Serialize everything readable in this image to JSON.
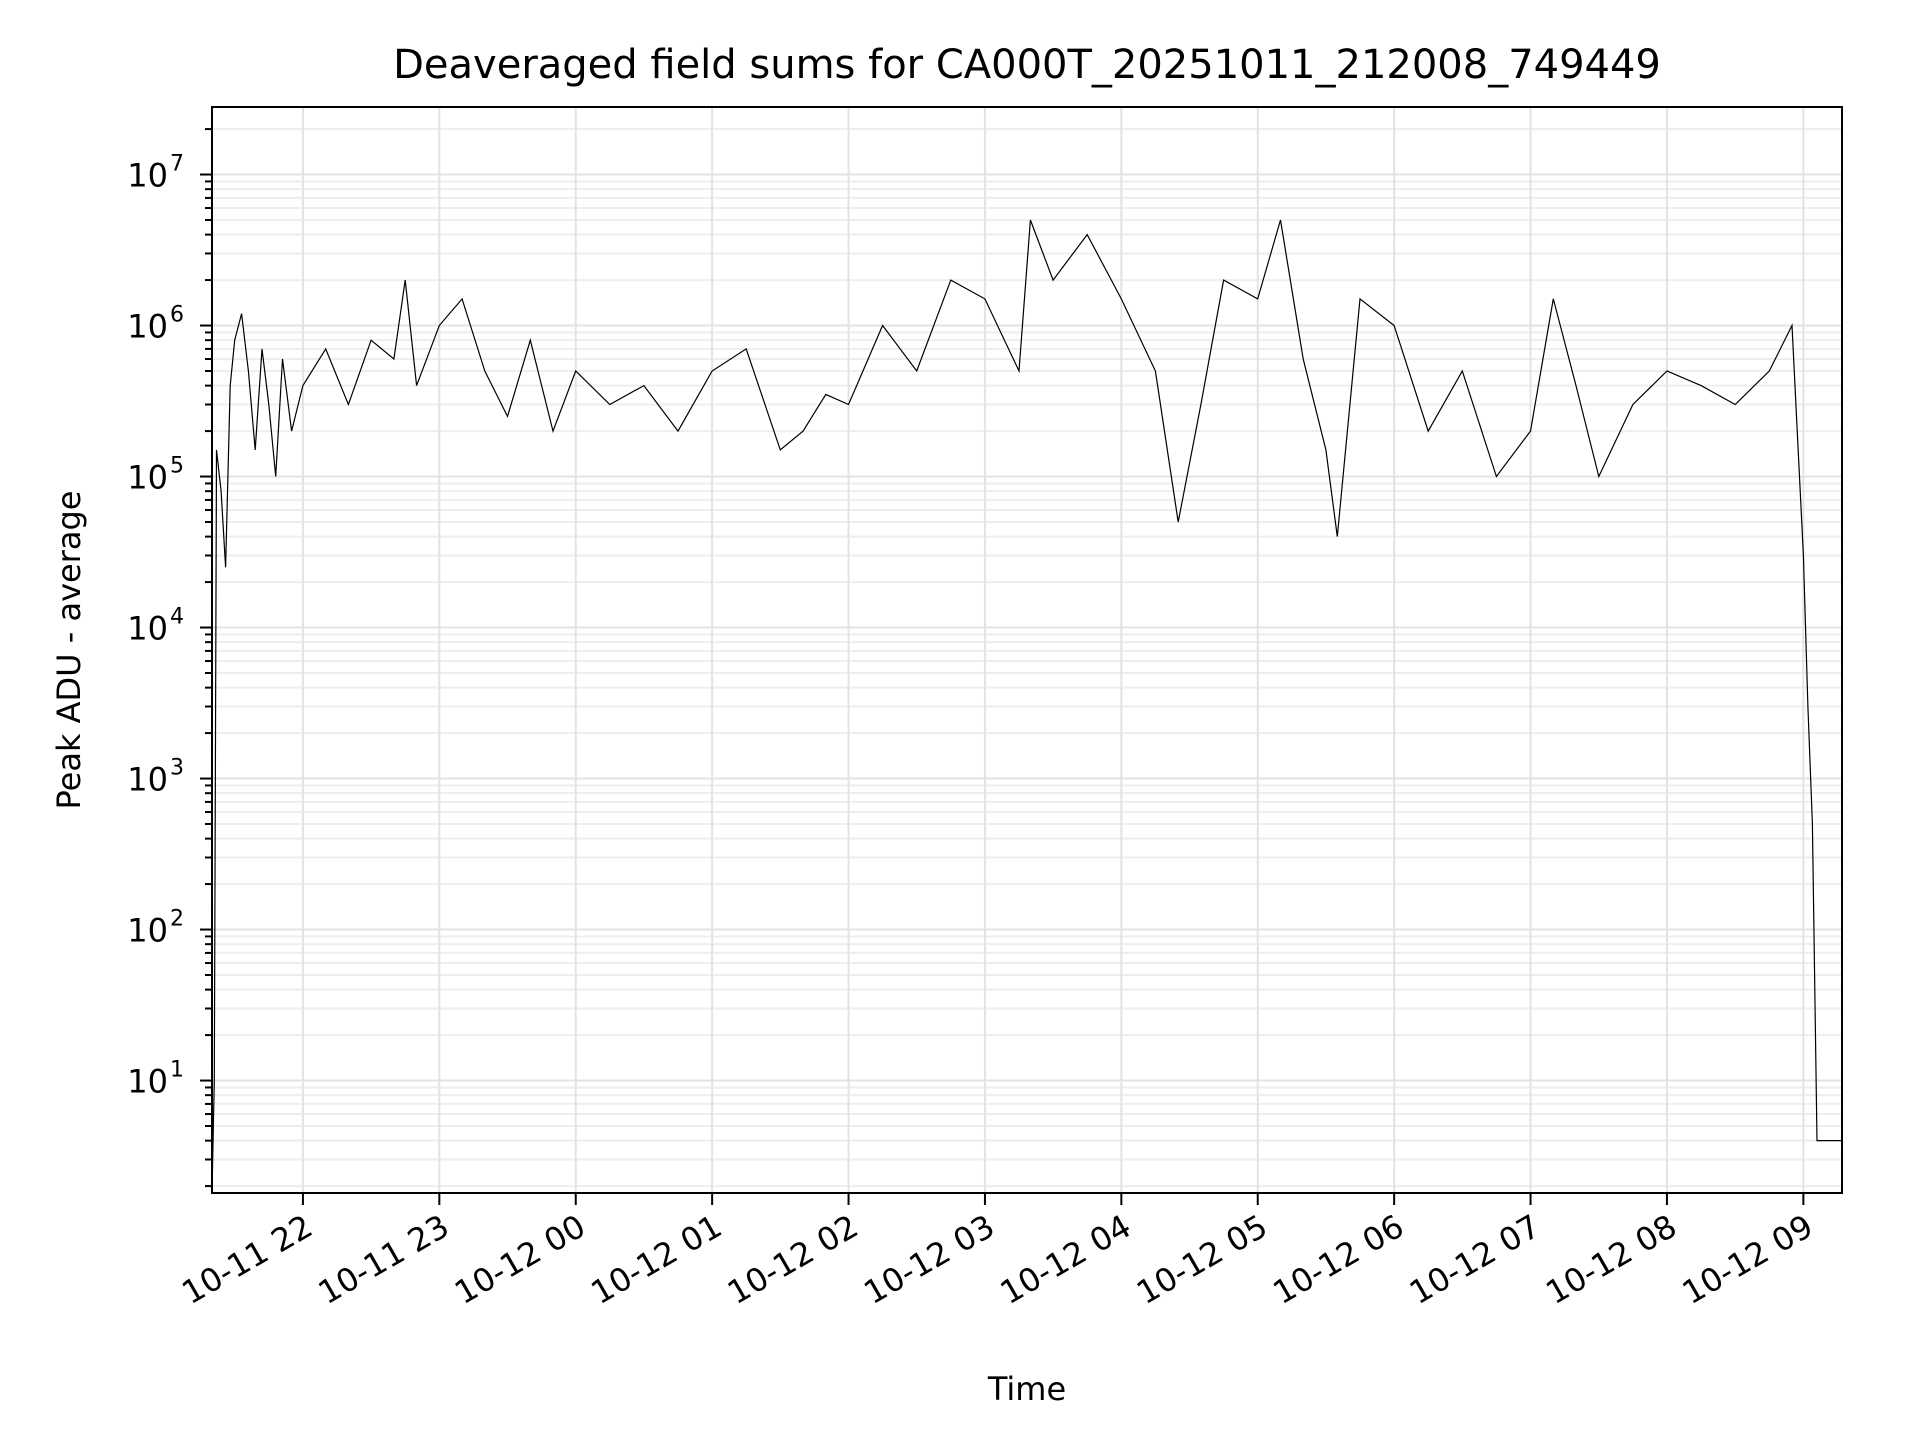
{
  "chart_data": {
    "type": "line",
    "title": "Deaveraged field sums for CA000T_20251011_212008_749449",
    "xlabel": "Time",
    "ylabel": "Peak ADU - average",
    "y_scale": "log",
    "y_tick_labels": [
      {
        "base": "10",
        "exp": "1",
        "value": 10
      },
      {
        "base": "10",
        "exp": "2",
        "value": 100
      },
      {
        "base": "10",
        "exp": "3",
        "value": 1000
      },
      {
        "base": "10",
        "exp": "4",
        "value": 10000
      },
      {
        "base": "10",
        "exp": "5",
        "value": 100000
      },
      {
        "base": "10",
        "exp": "6",
        "value": 1000000
      },
      {
        "base": "10",
        "exp": "7",
        "value": 10000000
      }
    ],
    "x_tick_labels": [
      "10-11 22",
      "10-11 23",
      "10-12 00",
      "10-12 01",
      "10-12 02",
      "10-12 03",
      "10-12 04",
      "10-12 05",
      "10-12 06",
      "10-12 07",
      "10-12 08",
      "10-12 09"
    ],
    "x_ticks": [
      "2025-10-11 22:00",
      "2025-10-11 23:00",
      "2025-10-12 00:00",
      "2025-10-12 01:00",
      "2025-10-12 02:00",
      "2025-10-12 03:00",
      "2025-10-12 04:00",
      "2025-10-12 05:00",
      "2025-10-12 06:00",
      "2025-10-12 07:00",
      "2025-10-12 08:00",
      "2025-10-12 09:00"
    ],
    "xlim": [
      "2025-10-11 21:20",
      "2025-10-12 09:17"
    ],
    "ylim": [
      1.8,
      28000000
    ],
    "grid": true,
    "color": "#000000",
    "series": [
      {
        "x": [
          "2025-10-11 21:20",
          "2025-10-11 21:21",
          "2025-10-11 21:22",
          "2025-10-11 21:24",
          "2025-10-11 21:26",
          "2025-10-11 21:28",
          "2025-10-11 21:30",
          "2025-10-11 21:33",
          "2025-10-11 21:36",
          "2025-10-11 21:39",
          "2025-10-11 21:42",
          "2025-10-11 21:45",
          "2025-10-11 21:48",
          "2025-10-11 21:51",
          "2025-10-11 21:55",
          "2025-10-11 22:00",
          "2025-10-11 22:10",
          "2025-10-11 22:20",
          "2025-10-11 22:30",
          "2025-10-11 22:40",
          "2025-10-11 22:45",
          "2025-10-11 22:50",
          "2025-10-11 23:00",
          "2025-10-11 23:10",
          "2025-10-11 23:20",
          "2025-10-11 23:30",
          "2025-10-11 23:40",
          "2025-10-11 23:50",
          "2025-10-12 00:00",
          "2025-10-12 00:15",
          "2025-10-12 00:30",
          "2025-10-12 00:45",
          "2025-10-12 01:00",
          "2025-10-12 01:15",
          "2025-10-12 01:30",
          "2025-10-12 01:40",
          "2025-10-12 01:50",
          "2025-10-12 02:00",
          "2025-10-12 02:15",
          "2025-10-12 02:30",
          "2025-10-12 02:45",
          "2025-10-12 03:00",
          "2025-10-12 03:15",
          "2025-10-12 03:20",
          "2025-10-12 03:30",
          "2025-10-12 03:45",
          "2025-10-12 04:00",
          "2025-10-12 04:15",
          "2025-10-12 04:25",
          "2025-10-12 04:35",
          "2025-10-12 04:45",
          "2025-10-12 05:00",
          "2025-10-12 05:10",
          "2025-10-12 05:20",
          "2025-10-12 05:30",
          "2025-10-12 05:35",
          "2025-10-12 05:45",
          "2025-10-12 06:00",
          "2025-10-12 06:15",
          "2025-10-12 06:30",
          "2025-10-12 06:45",
          "2025-10-12 07:00",
          "2025-10-12 07:10",
          "2025-10-12 07:20",
          "2025-10-12 07:30",
          "2025-10-12 07:45",
          "2025-10-12 08:00",
          "2025-10-12 08:15",
          "2025-10-12 08:30",
          "2025-10-12 08:45",
          "2025-10-12 08:55",
          "2025-10-12 09:00",
          "2025-10-12 09:02",
          "2025-10-12 09:04",
          "2025-10-12 09:06",
          "2025-10-12 09:07",
          "2025-10-12 09:17"
        ],
        "y": [
          1.8,
          10,
          150000,
          80000,
          25000,
          400000,
          800000,
          1200000,
          500000,
          150000,
          700000,
          300000,
          100000,
          600000,
          200000,
          400000,
          700000,
          300000,
          800000,
          600000,
          2000000,
          400000,
          1000000,
          1500000,
          500000,
          250000,
          800000,
          200000,
          500000,
          300000,
          400000,
          200000,
          500000,
          700000,
          150000,
          200000,
          350000,
          300000,
          1000000,
          500000,
          2000000,
          1500000,
          500000,
          5000000,
          2000000,
          4000000,
          1500000,
          500000,
          50000,
          300000,
          2000000,
          1500000,
          5000000,
          600000,
          150000,
          40000,
          1500000,
          1000000,
          200000,
          500000,
          100000,
          200000,
          1500000,
          400000,
          100000,
          300000,
          500000,
          400000,
          300000,
          500000,
          1000000,
          30000,
          3000,
          500,
          4,
          4,
          4
        ]
      }
    ]
  }
}
